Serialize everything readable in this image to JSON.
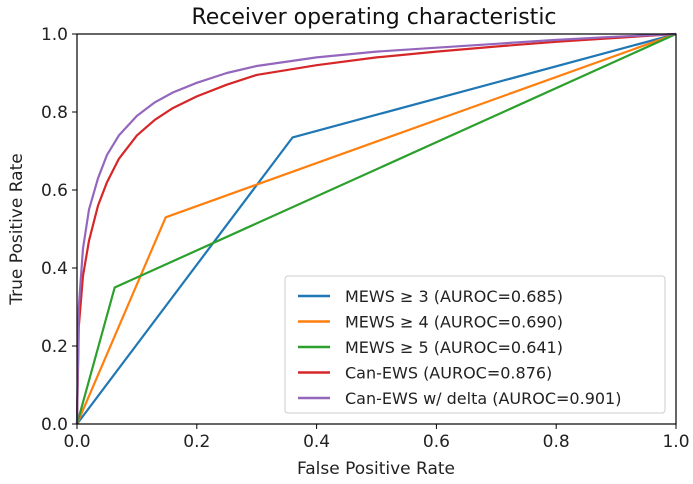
{
  "chart_data": {
    "type": "line",
    "title": "Receiver operating characteristic",
    "xlabel": "False Positive Rate",
    "ylabel": "True Positive Rate",
    "xlim": [
      0.0,
      1.0
    ],
    "ylim": [
      0.0,
      1.0
    ],
    "xticks": [
      "0.0",
      "0.2",
      "0.4",
      "0.6",
      "0.8",
      "1.0"
    ],
    "yticks": [
      "0.0",
      "0.2",
      "0.4",
      "0.6",
      "0.8",
      "1.0"
    ],
    "grid": false,
    "legend_position": "lower-right",
    "series": [
      {
        "name": "MEWS ≥ 3 (AUROC=0.685)",
        "color": "#1f77b4",
        "x": [
          0.0,
          0.36,
          1.0
        ],
        "y": [
          0.0,
          0.735,
          1.0
        ]
      },
      {
        "name": "MEWS ≥ 4 (AUROC=0.690)",
        "color": "#ff7f0e",
        "x": [
          0.0,
          0.148,
          1.0
        ],
        "y": [
          0.0,
          0.53,
          1.0
        ]
      },
      {
        "name": "MEWS ≥ 5 (AUROC=0.641)",
        "color": "#2ca02c",
        "x": [
          0.0,
          0.063,
          1.0
        ],
        "y": [
          0.0,
          0.35,
          1.0
        ]
      },
      {
        "name": "Can-EWS (AUROC=0.876)",
        "color": "#d62728",
        "x": [
          0.0,
          0.003,
          0.01,
          0.02,
          0.035,
          0.05,
          0.07,
          0.1,
          0.13,
          0.16,
          0.2,
          0.25,
          0.3,
          0.4,
          0.5,
          0.6,
          0.7,
          0.8,
          0.9,
          1.0
        ],
        "y": [
          0.0,
          0.25,
          0.38,
          0.47,
          0.56,
          0.62,
          0.68,
          0.74,
          0.78,
          0.81,
          0.84,
          0.87,
          0.895,
          0.92,
          0.94,
          0.955,
          0.968,
          0.98,
          0.99,
          1.0
        ]
      },
      {
        "name": "Can-EWS w/ delta (AUROC=0.901)",
        "color": "#9467bd",
        "x": [
          0.0,
          0.003,
          0.01,
          0.02,
          0.035,
          0.05,
          0.07,
          0.1,
          0.13,
          0.16,
          0.2,
          0.25,
          0.3,
          0.4,
          0.5,
          0.6,
          0.7,
          0.8,
          0.9,
          1.0
        ],
        "y": [
          0.0,
          0.3,
          0.45,
          0.55,
          0.63,
          0.69,
          0.74,
          0.79,
          0.825,
          0.85,
          0.875,
          0.9,
          0.918,
          0.94,
          0.955,
          0.965,
          0.975,
          0.985,
          0.993,
          1.0
        ]
      }
    ]
  }
}
